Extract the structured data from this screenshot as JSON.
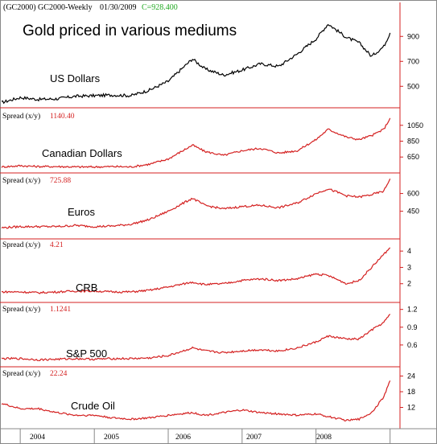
{
  "header": {
    "symbol": "(GC2000) GC2000-Weekly",
    "date": "01/30/2009",
    "close": "C=928.400"
  },
  "title": "Gold priced in various mediums",
  "x_axis": {
    "labels": [
      "2004",
      "2005",
      "2006",
      "2007",
      "2008"
    ]
  },
  "colors": {
    "gold_usd": "#000000",
    "spread": "#d42020",
    "axis": "#d42020",
    "close": "#22aa22"
  },
  "chart_data": [
    {
      "type": "line",
      "label": "US Dollars",
      "spread_label": "",
      "value_label": "",
      "y_ticks": [
        "900",
        "700",
        "500"
      ],
      "ylim": [
        360,
        1050
      ],
      "x": [
        "2003-10",
        "2004-01",
        "2004-04",
        "2004-07",
        "2004-10",
        "2005-01",
        "2005-04",
        "2005-07",
        "2005-10",
        "2006-01",
        "2006-05",
        "2006-07",
        "2006-10",
        "2007-01",
        "2007-04",
        "2007-07",
        "2007-10",
        "2008-01",
        "2008-03",
        "2008-06",
        "2008-08",
        "2008-10",
        "2008-12",
        "2009-01"
      ],
      "values": [
        370,
        410,
        395,
        400,
        420,
        425,
        430,
        425,
        470,
        540,
        720,
        640,
        590,
        630,
        680,
        660,
        760,
        880,
        1000,
        890,
        850,
        740,
        820,
        928
      ],
      "series": [
        {
          "name": "",
          "color": "#000000"
        }
      ]
    },
    {
      "type": "line",
      "label": "Canadian Dollars",
      "spread_label": "Spread (x/y)",
      "value_label": "1140.40",
      "y_ticks": [
        "1050",
        "850",
        "650"
      ],
      "ylim": [
        500,
        1200
      ],
      "x": [
        "2003-10",
        "2004-01",
        "2004-04",
        "2004-07",
        "2004-10",
        "2005-01",
        "2005-04",
        "2005-07",
        "2005-10",
        "2006-01",
        "2006-05",
        "2006-07",
        "2006-10",
        "2007-01",
        "2007-04",
        "2007-07",
        "2007-10",
        "2008-01",
        "2008-03",
        "2008-06",
        "2008-08",
        "2008-10",
        "2008-12",
        "2009-01"
      ],
      "values": [
        525,
        540,
        530,
        530,
        525,
        525,
        530,
        525,
        560,
        625,
        800,
        720,
        670,
        730,
        760,
        700,
        730,
        870,
        1000,
        900,
        870,
        920,
        1000,
        1140
      ],
      "series": [
        {
          "name": "",
          "color": "#d42020"
        }
      ]
    },
    {
      "type": "line",
      "label": "Euros",
      "spread_label": "Spread (x/y)",
      "value_label": "725.88",
      "y_ticks": [
        "600",
        "450"
      ],
      "ylim": [
        250,
        740
      ],
      "x": [
        "2003-10",
        "2004-01",
        "2004-04",
        "2004-07",
        "2004-10",
        "2005-01",
        "2005-04",
        "2005-07",
        "2005-10",
        "2006-01",
        "2006-05",
        "2006-07",
        "2006-10",
        "2007-01",
        "2007-04",
        "2007-07",
        "2007-10",
        "2008-01",
        "2008-03",
        "2008-06",
        "2008-08",
        "2008-10",
        "2008-12",
        "2009-01"
      ],
      "values": [
        310,
        320,
        320,
        320,
        330,
        320,
        325,
        340,
        380,
        450,
        560,
        500,
        470,
        490,
        500,
        480,
        520,
        600,
        640,
        580,
        570,
        590,
        620,
        725
      ],
      "series": [
        {
          "name": "",
          "color": "#d42020"
        }
      ]
    },
    {
      "type": "line",
      "label": "CRB",
      "spread_label": "Spread (x/y)",
      "value_label": "4.21",
      "y_ticks": [
        "4",
        "3",
        "2"
      ],
      "ylim": [
        1.1,
        4.5
      ],
      "x": [
        "2003-10",
        "2004-01",
        "2004-04",
        "2004-07",
        "2004-10",
        "2005-01",
        "2005-04",
        "2005-07",
        "2005-10",
        "2006-01",
        "2006-05",
        "2006-07",
        "2006-10",
        "2007-01",
        "2007-04",
        "2007-07",
        "2007-10",
        "2008-01",
        "2008-03",
        "2008-06",
        "2008-08",
        "2008-10",
        "2008-12",
        "2009-01"
      ],
      "values": [
        1.5,
        1.5,
        1.45,
        1.5,
        1.55,
        1.55,
        1.5,
        1.5,
        1.6,
        1.8,
        2.1,
        1.95,
        2.0,
        2.2,
        2.3,
        2.2,
        2.3,
        2.6,
        2.5,
        2.0,
        2.2,
        3.0,
        3.8,
        4.21
      ],
      "series": [
        {
          "name": "",
          "color": "#d42020"
        }
      ]
    },
    {
      "type": "line",
      "label": "S&P 500",
      "spread_label": "Spread (x/y)",
      "value_label": "1.1241",
      "y_ticks": [
        "1.2",
        "0.9",
        "0.6"
      ],
      "ylim": [
        0.3,
        1.25
      ],
      "x": [
        "2003-10",
        "2004-01",
        "2004-04",
        "2004-07",
        "2004-10",
        "2005-01",
        "2005-04",
        "2005-07",
        "2005-10",
        "2006-01",
        "2006-05",
        "2006-07",
        "2006-10",
        "2007-01",
        "2007-04",
        "2007-07",
        "2007-10",
        "2008-01",
        "2008-03",
        "2008-06",
        "2008-08",
        "2008-10",
        "2008-12",
        "2009-01"
      ],
      "values": [
        0.37,
        0.37,
        0.35,
        0.36,
        0.37,
        0.36,
        0.37,
        0.37,
        0.38,
        0.42,
        0.55,
        0.5,
        0.47,
        0.5,
        0.52,
        0.5,
        0.55,
        0.65,
        0.75,
        0.7,
        0.7,
        0.85,
        0.98,
        1.12
      ],
      "series": [
        {
          "name": "",
          "color": "#d42020"
        }
      ]
    },
    {
      "type": "line",
      "label": "Crude Oil",
      "spread_label": "Spread (x/y)",
      "value_label": "22.24",
      "y_ticks": [
        "24",
        "18",
        "12"
      ],
      "ylim": [
        6,
        26
      ],
      "x": [
        "2003-10",
        "2004-01",
        "2004-04",
        "2004-07",
        "2004-10",
        "2005-01",
        "2005-04",
        "2005-07",
        "2005-10",
        "2006-01",
        "2006-05",
        "2006-07",
        "2006-10",
        "2007-01",
        "2007-04",
        "2007-07",
        "2007-10",
        "2008-01",
        "2008-03",
        "2008-06",
        "2008-08",
        "2008-10",
        "2008-12",
        "2009-01"
      ],
      "values": [
        13.5,
        11.5,
        11.5,
        10,
        9,
        9,
        8,
        7.5,
        8,
        9,
        10,
        9,
        10,
        11,
        10,
        9.5,
        9,
        9.5,
        8.5,
        7,
        7.5,
        10,
        16,
        22.24
      ],
      "series": [
        {
          "name": "",
          "color": "#d42020"
        }
      ]
    }
  ]
}
